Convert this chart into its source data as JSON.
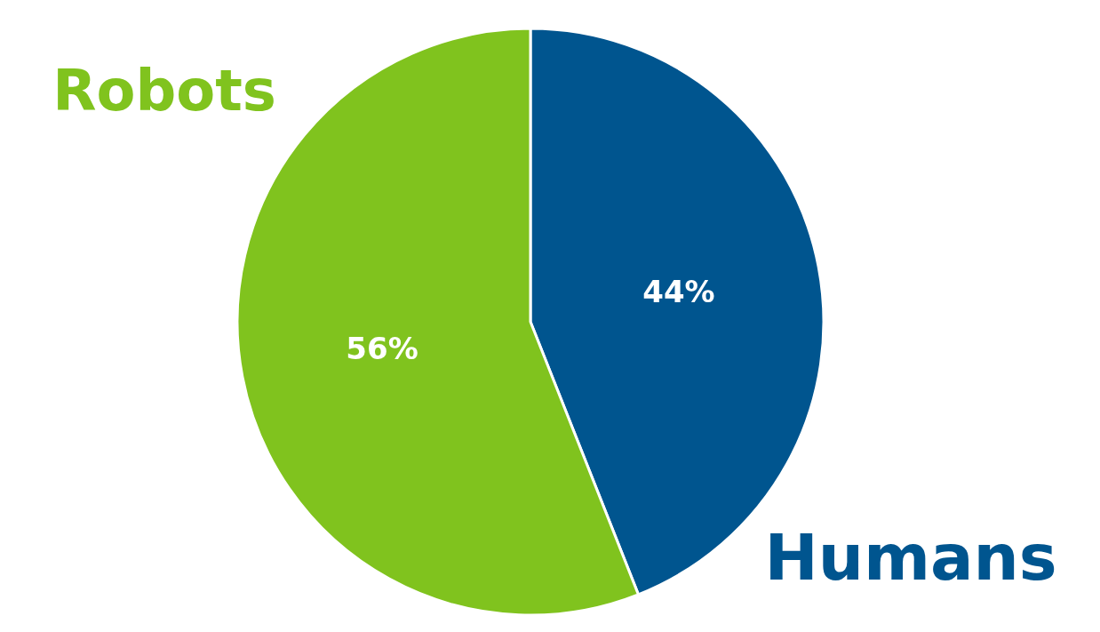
{
  "chart_data": {
    "type": "pie",
    "categories": [
      "Humans",
      "Robots"
    ],
    "values": [
      44,
      56
    ],
    "colors": [
      "#00558f",
      "#80c31e"
    ],
    "value_labels": [
      "44%",
      "56%"
    ]
  }
}
